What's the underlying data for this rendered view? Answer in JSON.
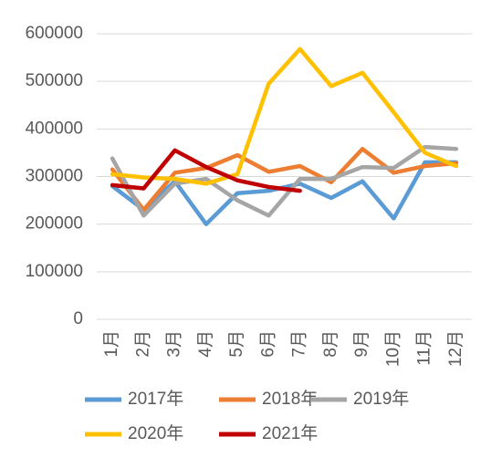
{
  "chart_data": {
    "type": "line",
    "categories": [
      "1月",
      "2月",
      "3月",
      "4月",
      "5月",
      "6月",
      "7月",
      "8月",
      "9月",
      "10月",
      "11月",
      "12月"
    ],
    "series": [
      {
        "name": "2017年",
        "color": "#5b9bd5",
        "values": [
          280000,
          230000,
          290000,
          200000,
          265000,
          270000,
          285000,
          255000,
          290000,
          212000,
          330000,
          330000
        ]
      },
      {
        "name": "2018年",
        "color": "#ed7d31",
        "values": [
          315000,
          230000,
          308000,
          318000,
          345000,
          310000,
          322000,
          288000,
          358000,
          308000,
          322000,
          328000
        ]
      },
      {
        "name": "2019年",
        "color": "#a5a5a5",
        "values": [
          338000,
          218000,
          285000,
          295000,
          250000,
          218000,
          295000,
          295000,
          320000,
          318000,
          362000,
          358000
        ]
      },
      {
        "name": "2020年",
        "color": "#ffc000",
        "values": [
          305000,
          298000,
          295000,
          285000,
          305000,
          495000,
          568000,
          490000,
          518000,
          435000,
          350000,
          322000
        ]
      },
      {
        "name": "2021年",
        "color": "#c00000",
        "values": [
          282000,
          275000,
          355000,
          320000,
          292000,
          278000,
          270000,
          null,
          null,
          null,
          null,
          null
        ]
      }
    ],
    "ylim": [
      0,
      600000
    ],
    "yticks": [
      0,
      100000,
      200000,
      300000,
      400000,
      500000,
      600000
    ],
    "grid": true,
    "legend": "bottom"
  }
}
